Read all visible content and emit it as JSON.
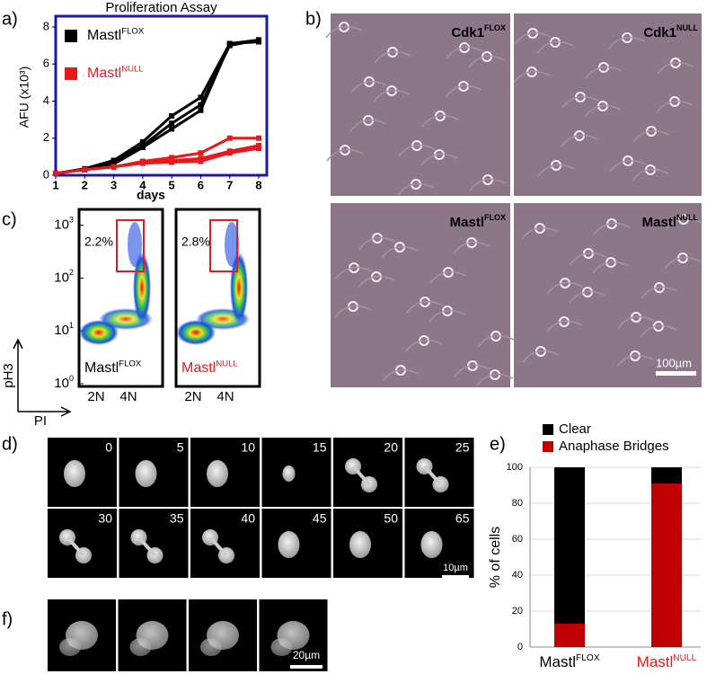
{
  "panel_labels": [
    "a)",
    "b)",
    "c)",
    "d)",
    "e)",
    "f)"
  ],
  "chart_data": [
    {
      "type": "line",
      "title": "Proliferation Assay",
      "x_label": "days",
      "y_label": "AFU (x10³)",
      "x": [
        1,
        2,
        3,
        4,
        5,
        6,
        7,
        8
      ],
      "xlim": [
        1,
        8
      ],
      "xticks": [
        1,
        2,
        3,
        4,
        5,
        6,
        7,
        8
      ],
      "ylim": [
        0,
        8
      ],
      "yticks": [
        0,
        2,
        4,
        6,
        8
      ],
      "frame_color": "#1a1aa8",
      "series": [
        {
          "name": "Mastl",
          "superscript": "FLOX",
          "color": "#000000",
          "replicates": [
            [
              0.1,
              0.35,
              0.8,
              1.8,
              3.2,
              4.2,
              7.1,
              7.3
            ],
            [
              0.1,
              0.3,
              0.7,
              1.6,
              2.8,
              3.8,
              7.0,
              7.3
            ],
            [
              0.1,
              0.3,
              0.6,
              1.5,
              2.5,
              3.5,
              7.1,
              7.2
            ]
          ]
        },
        {
          "name": "Mastl",
          "superscript": "NULL",
          "color": "#e8191b",
          "replicates": [
            [
              0.1,
              0.3,
              0.45,
              0.75,
              0.95,
              1.2,
              2.0,
              2.0
            ],
            [
              0.1,
              0.3,
              0.45,
              0.7,
              0.8,
              0.9,
              1.3,
              1.6
            ],
            [
              0.1,
              0.3,
              0.45,
              0.65,
              0.7,
              0.75,
              1.2,
              1.45
            ]
          ]
        }
      ]
    },
    {
      "type": "stacked_bar",
      "y_label": "% of cells",
      "categories": [
        "Mastl",
        "Mastl"
      ],
      "category_superscripts": [
        "FLOX",
        "NULL"
      ],
      "category_colors": [
        "#000000",
        "#e8191b"
      ],
      "ylim": [
        0,
        100
      ],
      "yticks": [
        0,
        20,
        40,
        60,
        80,
        100
      ],
      "grid": true,
      "series": [
        {
          "name": "Anaphase Bridges",
          "color": "#c00000",
          "values": [
            13,
            91
          ]
        },
        {
          "name": "Clear",
          "color": "#000000",
          "values": [
            87,
            9
          ]
        }
      ]
    }
  ],
  "flow_cytometry": {
    "log_scale": true,
    "ylim": [
      1,
      2000
    ],
    "yticks": [
      {
        "value": 1,
        "base": "10",
        "exponent": "0"
      },
      {
        "value": 10,
        "base": "10",
        "exponent": "1"
      },
      {
        "value": 100,
        "base": "10",
        "exponent": "2"
      },
      {
        "value": 1000,
        "base": "10",
        "exponent": "3"
      }
    ],
    "x_categories": [
      "2N",
      "4N"
    ],
    "y_label": "pH3",
    "x_label": "PI",
    "samples": [
      {
        "name": "Mastl",
        "superscript": "FLOX",
        "color": "#000000",
        "gate_percent": "2.2%"
      },
      {
        "name": "Mastl",
        "superscript": "NULL",
        "color": "#e8191b",
        "gate_percent": "2.8%"
      }
    ]
  },
  "micrographs": {
    "labels": [
      {
        "name": "Cdk1",
        "superscript": "FLOX"
      },
      {
        "name": "Cdk1",
        "superscript": "NULL"
      },
      {
        "name": "Mastl",
        "superscript": "FLOX"
      },
      {
        "name": "Mastl",
        "superscript": "NULL"
      }
    ],
    "scale_bar": "100µm"
  },
  "time_lapse": {
    "times": [
      0,
      5,
      10,
      15,
      20,
      25,
      30,
      35,
      40,
      45,
      50,
      65
    ],
    "scale_bar": "10µm"
  },
  "fixed_cells": {
    "scale_bar": "20µm"
  }
}
